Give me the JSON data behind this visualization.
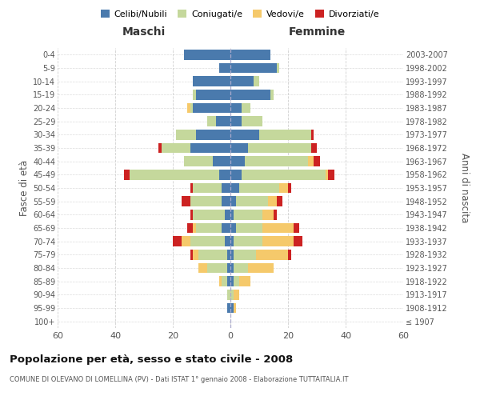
{
  "age_groups": [
    "100+",
    "95-99",
    "90-94",
    "85-89",
    "80-84",
    "75-79",
    "70-74",
    "65-69",
    "60-64",
    "55-59",
    "50-54",
    "45-49",
    "40-44",
    "35-39",
    "30-34",
    "25-29",
    "20-24",
    "15-19",
    "10-14",
    "5-9",
    "0-4"
  ],
  "birth_years": [
    "≤ 1907",
    "1908-1912",
    "1913-1917",
    "1918-1922",
    "1923-1927",
    "1928-1932",
    "1933-1937",
    "1938-1942",
    "1943-1947",
    "1948-1952",
    "1953-1957",
    "1958-1962",
    "1963-1967",
    "1968-1972",
    "1973-1977",
    "1978-1982",
    "1983-1987",
    "1988-1992",
    "1993-1997",
    "1998-2002",
    "2003-2007"
  ],
  "males": {
    "celibi": [
      0,
      1,
      0,
      1,
      1,
      1,
      2,
      3,
      2,
      3,
      3,
      4,
      6,
      14,
      12,
      5,
      13,
      12,
      13,
      4,
      16
    ],
    "coniugati": [
      0,
      0,
      1,
      2,
      7,
      10,
      12,
      9,
      11,
      11,
      10,
      31,
      10,
      10,
      7,
      3,
      1,
      1,
      0,
      0,
      0
    ],
    "vedovi": [
      0,
      0,
      0,
      1,
      3,
      2,
      3,
      1,
      0,
      0,
      0,
      0,
      0,
      0,
      0,
      0,
      1,
      0,
      0,
      0,
      0
    ],
    "divorziati": [
      0,
      0,
      0,
      0,
      0,
      1,
      3,
      2,
      1,
      3,
      1,
      2,
      0,
      1,
      0,
      0,
      0,
      0,
      0,
      0,
      0
    ]
  },
  "females": {
    "nubili": [
      0,
      1,
      0,
      1,
      1,
      1,
      1,
      2,
      1,
      2,
      3,
      4,
      5,
      6,
      10,
      4,
      4,
      14,
      8,
      16,
      14
    ],
    "coniugate": [
      0,
      0,
      1,
      2,
      5,
      8,
      10,
      9,
      10,
      11,
      14,
      29,
      22,
      22,
      18,
      7,
      3,
      1,
      2,
      1,
      0
    ],
    "vedove": [
      0,
      1,
      2,
      4,
      9,
      11,
      11,
      11,
      4,
      3,
      3,
      1,
      2,
      0,
      0,
      0,
      0,
      0,
      0,
      0,
      0
    ],
    "divorziate": [
      0,
      0,
      0,
      0,
      0,
      1,
      3,
      2,
      1,
      2,
      1,
      2,
      2,
      2,
      1,
      0,
      0,
      0,
      0,
      0,
      0
    ]
  },
  "colors": {
    "celibi": "#4a7aad",
    "coniugati": "#c5d89c",
    "vedovi": "#f5c96b",
    "divorziati": "#cc2222"
  },
  "title": "Popolazione per età, sesso e stato civile - 2008",
  "subtitle": "COMUNE DI OLEVANO DI LOMELLINA (PV) - Dati ISTAT 1° gennaio 2008 - Elaborazione TUTTAITALIA.IT",
  "xlabel_left": "Maschi",
  "xlabel_right": "Femmine",
  "ylabel_left": "Fasce di età",
  "ylabel_right": "Anni di nascita",
  "legend_labels": [
    "Celibi/Nubili",
    "Coniugati/e",
    "Vedovi/e",
    "Divorziati/e"
  ],
  "xlim": 60,
  "background_color": "#ffffff",
  "grid_color": "#cccccc"
}
